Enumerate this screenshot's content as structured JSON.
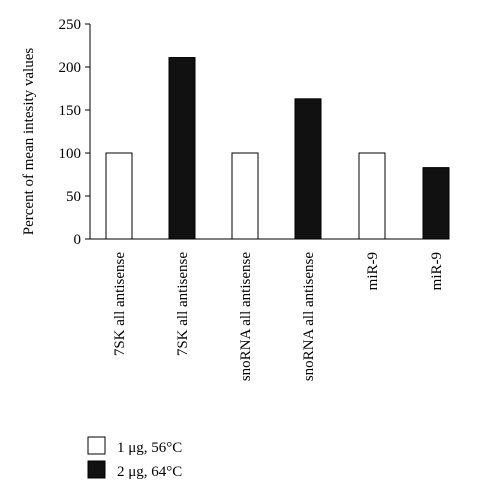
{
  "chart_data": {
    "type": "bar",
    "title": "",
    "xlabel": "",
    "ylabel": "Percent of mean intesity values",
    "ylim": [
      0,
      250
    ],
    "yticks": [
      0,
      50,
      100,
      150,
      200,
      250
    ],
    "grid": false,
    "legend_position": "bottom-left",
    "categories": [
      "7SK all antisense",
      "7SK all antisense",
      "snoRNA all antisense",
      "snoRNA all antisense",
      "miR-9",
      "miR-9"
    ],
    "values": [
      100,
      211,
      100,
      163,
      100,
      83
    ],
    "bar_series": [
      0,
      1,
      0,
      1,
      0,
      1
    ],
    "series": [
      {
        "name": "1 μg, 56°C",
        "fill": "#ffffff",
        "stroke": "#000000"
      },
      {
        "name": "2 μg, 64°C",
        "fill": "#111111",
        "stroke": "#000000"
      }
    ]
  }
}
